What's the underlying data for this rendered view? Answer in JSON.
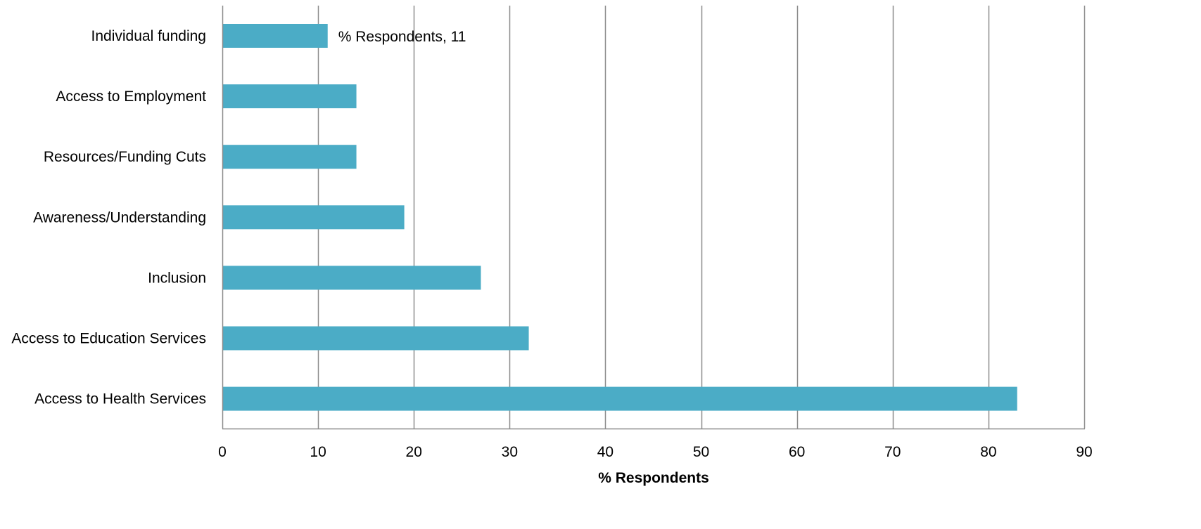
{
  "chart_data": {
    "type": "bar",
    "orientation": "horizontal",
    "categories": [
      "Individual funding",
      "Access to Employment",
      "Resources/Funding Cuts",
      "Awareness/Understanding",
      "Inclusion",
      "Access to Education Services",
      "Access to Health Services"
    ],
    "series": [
      {
        "values": [
          11,
          14,
          14,
          19,
          27,
          32,
          83
        ]
      }
    ],
    "title": "",
    "xlabel": "% Respondents",
    "ylabel": "",
    "xlim": [
      0,
      90
    ],
    "xticks": [
      0,
      10,
      20,
      30,
      40,
      50,
      60,
      70,
      80,
      90
    ],
    "xtick_labels": [
      "0",
      "10",
      "20",
      "30",
      "40",
      "50",
      "60",
      "70",
      "80",
      "90"
    ],
    "grid": "vertical",
    "legend": "none",
    "data_labels": [
      {
        "category_index": 0,
        "text": "% Respondents, 11"
      }
    ],
    "colors": {
      "bar": "#4BACC6",
      "grid": "#8C8C8C",
      "axis": "#8C8C8C",
      "text": "#000000"
    }
  }
}
